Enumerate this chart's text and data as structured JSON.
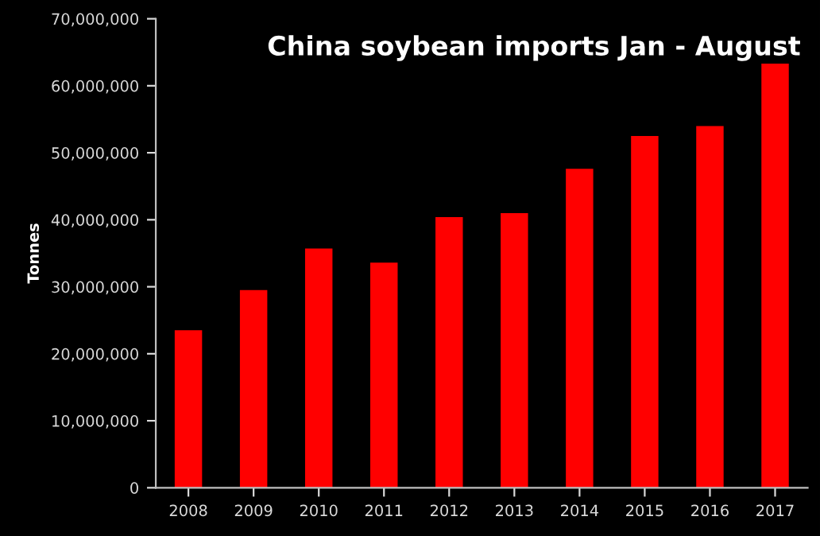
{
  "chart_data": {
    "type": "bar",
    "title": "China soybean imports Jan - August",
    "ylabel": "Tonnes",
    "categories": [
      "2008",
      "2009",
      "2010",
      "2011",
      "2012",
      "2013",
      "2014",
      "2015",
      "2016",
      "2017"
    ],
    "values": [
      23500000,
      29500000,
      35700000,
      33600000,
      40400000,
      41000000,
      47600000,
      52500000,
      54000000,
      63300000
    ],
    "color": "#ff0000",
    "ylim": [
      0,
      70000000
    ],
    "yticks": [
      {
        "value": 0,
        "label": "0"
      },
      {
        "value": 10000000,
        "label": "10,000,000"
      },
      {
        "value": 20000000,
        "label": "20,000,000"
      },
      {
        "value": 30000000,
        "label": "30,000,000"
      },
      {
        "value": 40000000,
        "label": "40,000,000"
      },
      {
        "value": 50000000,
        "label": "50,000,000"
      },
      {
        "value": 60000000,
        "label": "60,000,000"
      },
      {
        "value": 70000000,
        "label": "70,000,000"
      }
    ],
    "grid": false
  }
}
